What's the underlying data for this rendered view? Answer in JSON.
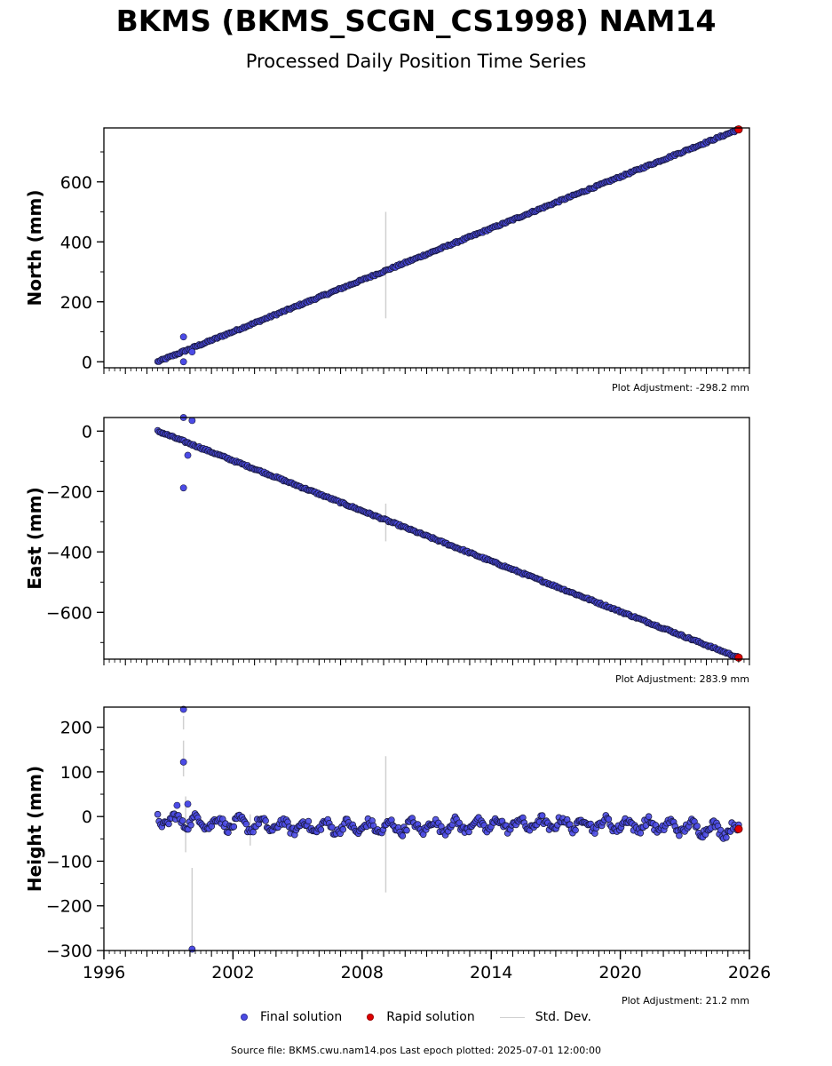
{
  "header": {
    "title": "BKMS (BKMS_SCGN_CS1998) NAM14",
    "subtitle": "Processed Daily Position Time Series"
  },
  "legend": {
    "final_label": "Final solution",
    "rapid_label": "Rapid solution",
    "std_label": "Std. Dev."
  },
  "footer": {
    "text": "Source file: BKMS.cwu.nam14.pos  Last epoch plotted: 2025-07-01 12:00:00"
  },
  "colors": {
    "final": "#4b4be6",
    "rapid": "#e00000",
    "stddev": "#d0d0d0",
    "marker_edge": "#1a1a40"
  },
  "chart_data": [
    {
      "type": "scatter",
      "ylabel": "North (mm)",
      "xlim": [
        1996,
        2026
      ],
      "ylim": [
        -20,
        780
      ],
      "yticks": [
        0,
        200,
        400,
        600
      ],
      "adjustment": "Plot Adjustment: -298.2 mm",
      "trend": {
        "x_start": 1998.5,
        "y_start": 0,
        "x_end": 2025.5,
        "y_end": 775
      },
      "outliers": [
        {
          "x": 1999.7,
          "y": 83
        },
        {
          "x": 1999.7,
          "y": 0
        },
        {
          "x": 2000.1,
          "y": 33
        }
      ],
      "stddev_bars": [
        {
          "x": 2009.1,
          "y_low": 145,
          "y_high": 500
        }
      ],
      "rapid_point": {
        "x": 2025.5,
        "y": 775
      }
    },
    {
      "type": "scatter",
      "ylabel": "East (mm)",
      "xlim": [
        1996,
        2026
      ],
      "ylim": [
        -755,
        45
      ],
      "yticks": [
        0,
        -200,
        -400,
        -600
      ],
      "adjustment": "Plot Adjustment: 283.9 mm",
      "trend": {
        "x_start": 1998.5,
        "y_start": 0,
        "x_end": 2025.5,
        "y_end": -750
      },
      "outliers": [
        {
          "x": 1999.7,
          "y": 45
        },
        {
          "x": 2000.1,
          "y": 35
        },
        {
          "x": 1999.9,
          "y": -80
        },
        {
          "x": 1999.7,
          "y": -188
        }
      ],
      "stddev_bars": [
        {
          "x": 2009.1,
          "y_low": -365,
          "y_high": -240
        }
      ],
      "rapid_point": {
        "x": 2025.5,
        "y": -750
      }
    },
    {
      "type": "scatter",
      "ylabel": "Height (mm)",
      "xlabel": "",
      "xlim": [
        1996,
        2026
      ],
      "ylim": [
        -300,
        245
      ],
      "yticks": [
        200,
        100,
        0,
        -100,
        -200,
        -300
      ],
      "xticks": [
        1996,
        2002,
        2008,
        2014,
        2020,
        2026
      ],
      "adjustment": "Plot Adjustment: 21.2 mm",
      "trend": {
        "x_start": 1998.5,
        "y_start": -10,
        "x_end": 2025.5,
        "y_end": -30
      },
      "outliers": [
        {
          "x": 1999.7,
          "y": 240
        },
        {
          "x": 1999.7,
          "y": 122
        },
        {
          "x": 1999.9,
          "y": 28
        },
        {
          "x": 1999.4,
          "y": 25
        },
        {
          "x": 2000.1,
          "y": -297
        }
      ],
      "stddev_bars": [
        {
          "x": 2009.1,
          "y_low": -170,
          "y_high": 135
        },
        {
          "x": 2000.1,
          "y_low": -290,
          "y_high": -115
        },
        {
          "x": 1999.7,
          "y_low": 195,
          "y_high": 225
        },
        {
          "x": 1999.7,
          "y_low": 90,
          "y_high": 170
        },
        {
          "x": 1999.8,
          "y_low": -80,
          "y_high": 45
        },
        {
          "x": 2002.8,
          "y_low": -65,
          "y_high": 5
        }
      ],
      "rapid_point": {
        "x": 2025.5,
        "y": -28
      }
    }
  ]
}
